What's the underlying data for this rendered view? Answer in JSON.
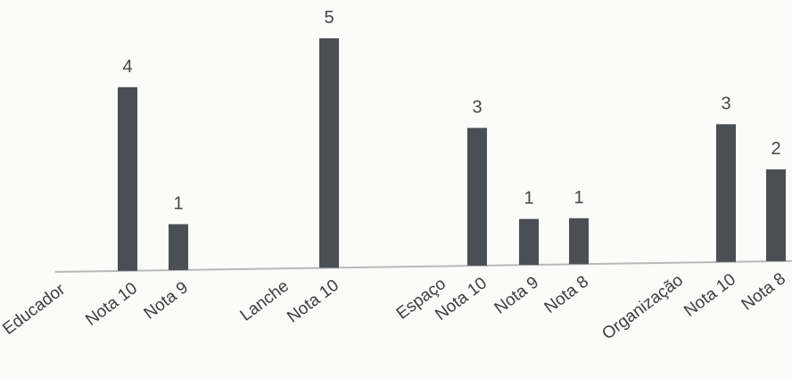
{
  "chart_data": {
    "type": "bar",
    "categories": [
      "Educador",
      "Nota 10",
      "Nota 9",
      "Lanche",
      "Nota 10",
      "Espaço",
      "Nota 10",
      "Nota 9",
      "Nota 8",
      "Organização",
      "Nota 10",
      "Nota 8"
    ],
    "values": [
      null,
      4,
      1,
      null,
      5,
      null,
      3,
      1,
      1,
      null,
      3,
      2
    ],
    "data_labels": [
      "",
      "4",
      "1",
      "",
      "5",
      "",
      "3",
      "1",
      "1",
      "",
      "3",
      "2"
    ],
    "ylim": [
      0,
      5
    ],
    "grid": false,
    "legend": "none",
    "colors": {
      "bar": "#4b4f54",
      "axis": "#b8b8b8",
      "text": "#3d3d3d",
      "background": "#fbfbfa"
    }
  }
}
